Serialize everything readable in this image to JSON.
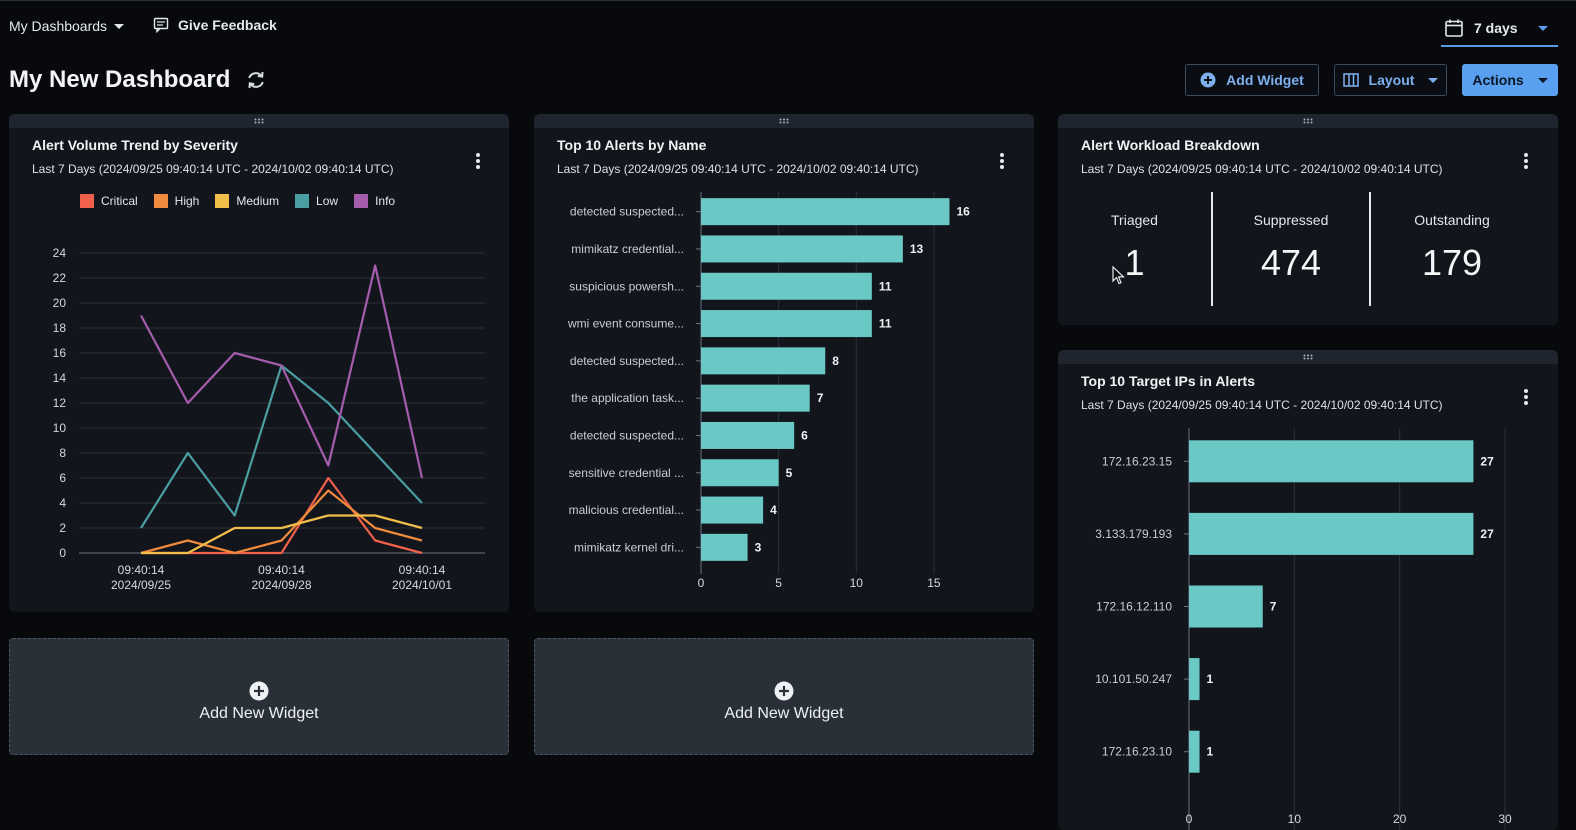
{
  "topbar": {
    "dashboards_menu": "My Dashboards",
    "feedback": "Give Feedback",
    "date_range": "7 days"
  },
  "header": {
    "title": "My New Dashboard",
    "add_widget": "Add Widget",
    "layout": "Layout",
    "actions": "Actions"
  },
  "widgets": {
    "trend": {
      "title": "Alert Volume Trend by Severity",
      "subtitle": "Last 7 Days (2024/09/25 09:40:14 UTC - 2024/10/02 09:40:14 UTC)"
    },
    "top_alerts": {
      "title": "Top 10 Alerts by Name",
      "subtitle": "Last 7 Days (2024/09/25 09:40:14 UTC - 2024/10/02 09:40:14 UTC)"
    },
    "workload": {
      "title": "Alert Workload Breakdown",
      "subtitle": "Last 7 Days (2024/09/25 09:40:14 UTC - 2024/10/02 09:40:14 UTC)",
      "stats": [
        {
          "label": "Triaged",
          "value": "1"
        },
        {
          "label": "Suppressed",
          "value": "474"
        },
        {
          "label": "Outstanding",
          "value": "179"
        }
      ]
    },
    "top_ips": {
      "title": "Top 10 Target IPs in Alerts",
      "subtitle": "Last 7 Days (2024/09/25 09:40:14 UTC - 2024/10/02 09:40:14 UTC)"
    },
    "add_new_1": "Add New Widget",
    "add_new_2": "Add New Widget"
  },
  "colors": {
    "critical": "#f0604a",
    "high": "#f08a3c",
    "medium": "#f2be4a",
    "low": "#4a9da0",
    "info": "#a55cad",
    "bar": "#6ac9c4",
    "accent": "#5aa0f0"
  },
  "chart_data": [
    {
      "type": "line",
      "title": "Alert Volume Trend by Severity",
      "x_ticks": [
        "09:40:14\n2024/09/25",
        "09:40:14\n2024/09/28",
        "09:40:14\n2024/10/01"
      ],
      "x": [
        0,
        1,
        2,
        3,
        4,
        5,
        6
      ],
      "ylim": [
        0,
        24
      ],
      "y_ticks": [
        0,
        2,
        4,
        6,
        8,
        10,
        12,
        14,
        16,
        18,
        20,
        22,
        24
      ],
      "legend": "top",
      "grid": true,
      "series": [
        {
          "name": "Critical",
          "color": "#f0604a",
          "values": [
            0,
            0,
            0,
            0,
            6,
            1,
            0
          ]
        },
        {
          "name": "High",
          "color": "#f08a3c",
          "values": [
            0,
            1,
            0,
            1,
            5,
            2,
            1
          ]
        },
        {
          "name": "Medium",
          "color": "#f2be4a",
          "values": [
            0,
            0,
            2,
            2,
            3,
            3,
            2
          ]
        },
        {
          "name": "Low",
          "color": "#4a9da0",
          "values": [
            2,
            8,
            3,
            15,
            12,
            8,
            4
          ]
        },
        {
          "name": "Info",
          "color": "#a55cad",
          "values": [
            19,
            12,
            16,
            15,
            7,
            23,
            6
          ]
        }
      ]
    },
    {
      "type": "bar",
      "orientation": "horizontal",
      "title": "Top 10 Alerts by Name",
      "categories": [
        "detected suspected...",
        "mimikatz credential...",
        "suspicious powersh...",
        "wmi event consume...",
        "detected suspected...",
        "the application task...",
        "detected suspected...",
        "sensitive credential ...",
        "malicious credential...",
        "mimikatz kernel dri..."
      ],
      "values": [
        16,
        13,
        11,
        11,
        8,
        7,
        6,
        5,
        4,
        3
      ],
      "xlim": [
        0,
        17
      ],
      "x_ticks": [
        0,
        5,
        10,
        15
      ],
      "grid": true
    },
    {
      "type": "bar",
      "orientation": "horizontal",
      "title": "Top 10 Target IPs in Alerts",
      "categories": [
        "172.16.23.15",
        "3.133.179.193",
        "172.16.12.110",
        "10.101.50.247",
        "172.16.23.10"
      ],
      "values": [
        27,
        27,
        7,
        1,
        1
      ],
      "xlim": [
        0,
        30
      ],
      "x_ticks": [
        0,
        10,
        20,
        30
      ],
      "grid": true
    }
  ]
}
